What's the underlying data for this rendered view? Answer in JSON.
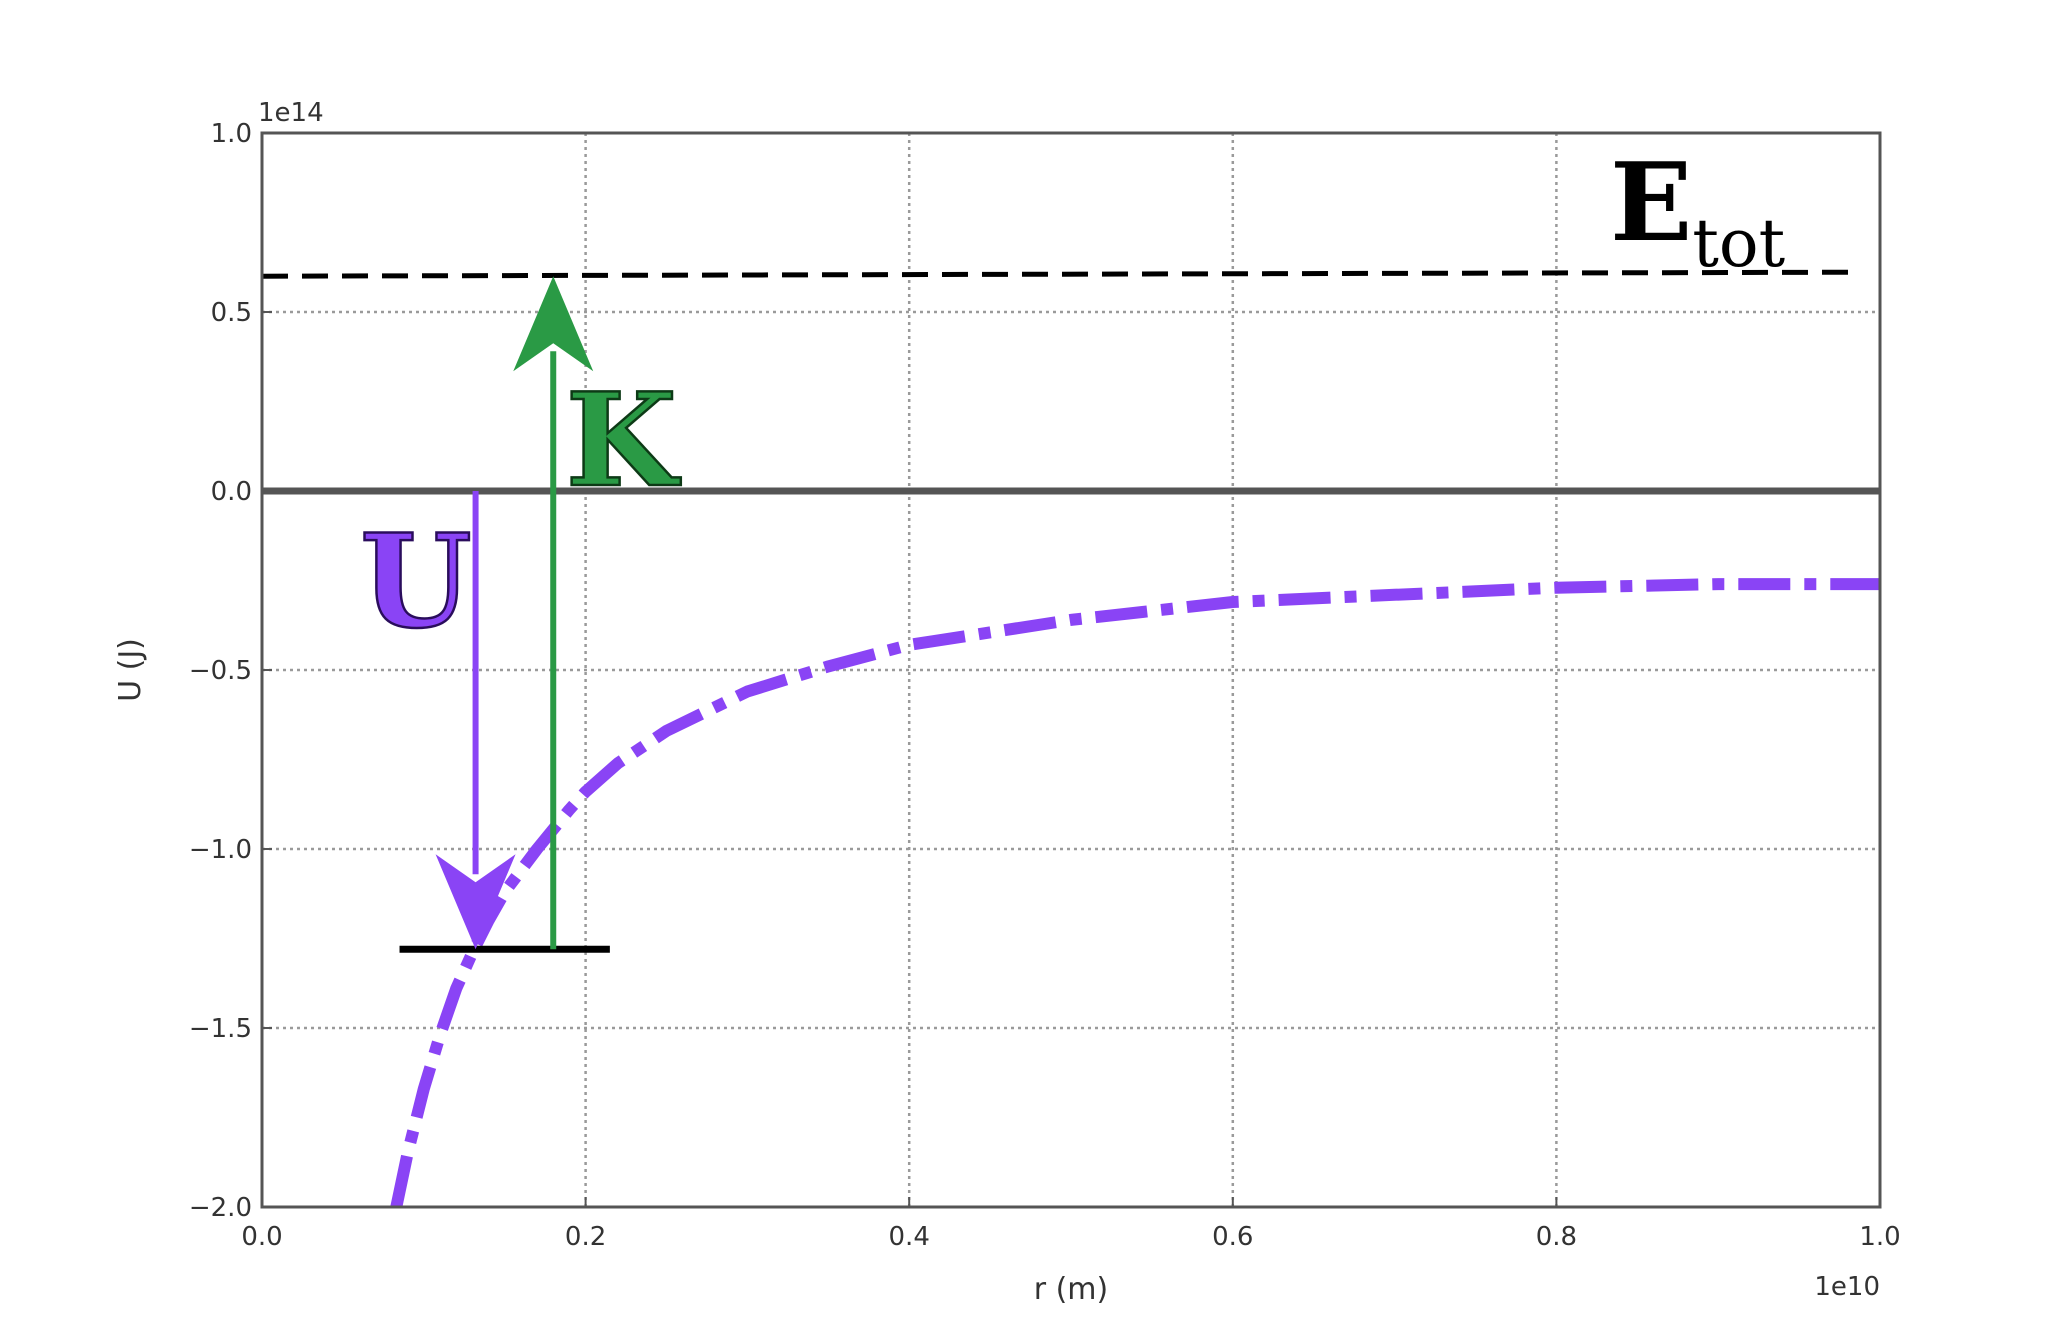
{
  "chart_data": {
    "type": "line",
    "xlabel": "r (m)",
    "ylabel": "U (J)",
    "x_multiplier": "1e10",
    "y_multiplier": "1e14",
    "xlim": [
      0.0,
      1.0
    ],
    "ylim": [
      -2.0,
      1.0
    ],
    "xticks": [
      "0.0",
      "0.2",
      "0.4",
      "0.6",
      "0.8",
      "1.0"
    ],
    "yticks": [
      "1.0",
      "0.5",
      "0.0",
      "−0.5",
      "−1.0",
      "−1.5",
      "−2.0"
    ],
    "xtick_values": [
      0.0,
      0.2,
      0.4,
      0.6,
      0.8,
      1.0
    ],
    "ytick_values": [
      1.0,
      0.5,
      0.0,
      -0.5,
      -1.0,
      -1.5,
      -2.0
    ],
    "grid": true,
    "series": [
      {
        "style": "dash-dot",
        "color": "#8a44f5",
        "x": [
          0.083,
          0.09,
          0.1,
          0.11,
          0.12,
          0.13,
          0.14,
          0.15,
          0.17,
          0.19,
          0.2,
          0.22,
          0.25,
          0.3,
          0.35,
          0.4,
          0.5,
          0.6,
          0.7,
          0.8,
          0.9,
          1.0
        ],
        "y": [
          -2.0,
          -1.85,
          -1.67,
          -1.52,
          -1.39,
          -1.29,
          -1.2,
          -1.12,
          -1.0,
          -0.89,
          -0.84,
          -0.76,
          -0.67,
          -0.56,
          -0.49,
          -0.43,
          -0.36,
          -0.31,
          -0.29,
          -0.27,
          -0.26,
          -0.26
        ]
      }
    ],
    "total_energy": {
      "y": 0.6,
      "style": "dashed",
      "color": "#000000"
    },
    "orbit_level": {
      "y": -1.28,
      "x_range": [
        0.085,
        0.215
      ],
      "color": "#000000"
    },
    "arrows": [
      {
        "name": "U",
        "x": 0.132,
        "from": 0.0,
        "to": -1.28,
        "color": "#8a44f5"
      },
      {
        "name": "K",
        "x": 0.18,
        "from": -1.28,
        "to": 0.6,
        "color": "#2a9a45"
      }
    ],
    "annotations": {
      "E_main": "E",
      "E_sub": "tot",
      "K": "K",
      "U": "U"
    }
  }
}
